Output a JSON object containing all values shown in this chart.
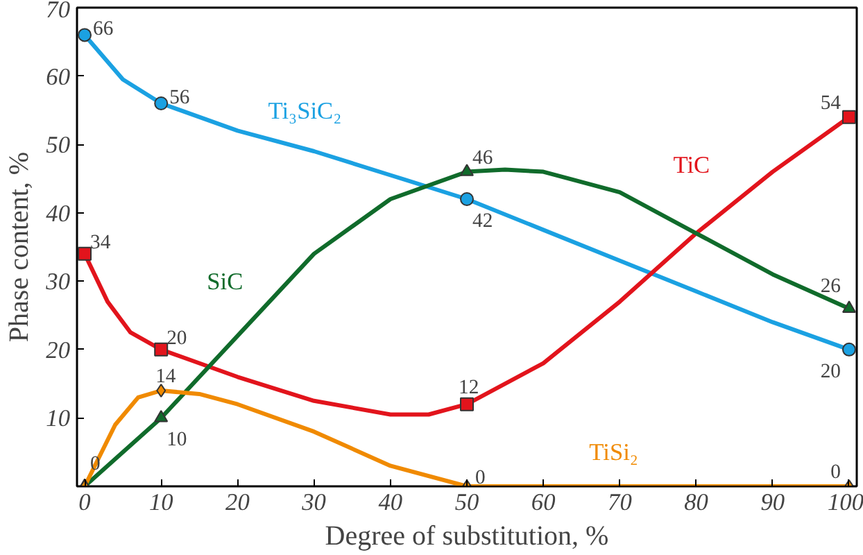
{
  "chart_data": {
    "type": "line",
    "xlabel": "Degree of substitution, %",
    "ylabel": "Phase content, %",
    "x": [
      0,
      10,
      50,
      100
    ],
    "xlim": [
      -1,
      101
    ],
    "ylim": [
      0,
      70
    ],
    "xticks": [
      0,
      10,
      20,
      30,
      40,
      50,
      60,
      70,
      80,
      90,
      100
    ],
    "yticks": [
      10,
      20,
      30,
      40,
      50,
      60,
      70
    ],
    "grid": false,
    "series": [
      {
        "color": "#1ba1e2",
        "marker": "none",
        "x": [
          0,
          5,
          10,
          20,
          30,
          40,
          50,
          60,
          70,
          80,
          90,
          100
        ],
        "values": [
          66,
          59.5,
          56,
          52,
          49,
          45.5,
          42,
          37.5,
          33,
          28.5,
          24,
          20
        ]
      },
      {
        "color": "#e2141c",
        "marker": "none",
        "x": [
          0,
          3,
          6,
          10,
          20,
          30,
          40,
          45,
          50,
          60,
          70,
          80,
          90,
          100
        ],
        "values": [
          34,
          27,
          22.5,
          20,
          16,
          12.5,
          10.5,
          10.5,
          12,
          18,
          27,
          37,
          46,
          54
        ]
      },
      {
        "color": "#106b2b",
        "marker": "none",
        "x": [
          0,
          10,
          20,
          30,
          40,
          50,
          55,
          60,
          70,
          80,
          90,
          100
        ],
        "values": [
          0,
          10,
          22,
          34,
          42,
          46,
          46.3,
          46,
          43,
          37,
          31,
          26
        ]
      },
      {
        "color": "#f08a00",
        "marker": "none",
        "x": [
          0,
          4,
          7,
          10,
          15,
          20,
          30,
          40,
          50,
          60,
          70,
          80,
          90,
          100
        ],
        "values": [
          0,
          9,
          13,
          14,
          13.5,
          12,
          8,
          3,
          0,
          0,
          0,
          0,
          0,
          0
        ]
      },
      {
        "type": "scatter",
        "name": "Ti₃SiC₂",
        "color": "#1ba1e2",
        "marker": "circle",
        "values": [
          66,
          56,
          42,
          20
        ],
        "value_labels": [
          "66",
          "56",
          "42",
          "20"
        ]
      },
      {
        "type": "scatter",
        "name": "TiC",
        "color": "#e2141c",
        "marker": "square",
        "values": [
          34,
          20,
          12,
          54
        ],
        "value_labels": [
          "34",
          "20",
          "12",
          "54"
        ]
      },
      {
        "type": "scatter",
        "name": "SiC",
        "color": "#106b2b",
        "marker": "triangle",
        "values": [
          0,
          10,
          46,
          26
        ],
        "value_labels": [
          null,
          "10",
          "46",
          "26"
        ]
      },
      {
        "type": "scatter",
        "name": "TiSi₂",
        "color": "#f08a00",
        "marker": "diamond",
        "values": [
          0,
          14,
          0,
          0
        ],
        "value_labels": [
          "0",
          "14",
          "0",
          "0"
        ]
      }
    ]
  }
}
